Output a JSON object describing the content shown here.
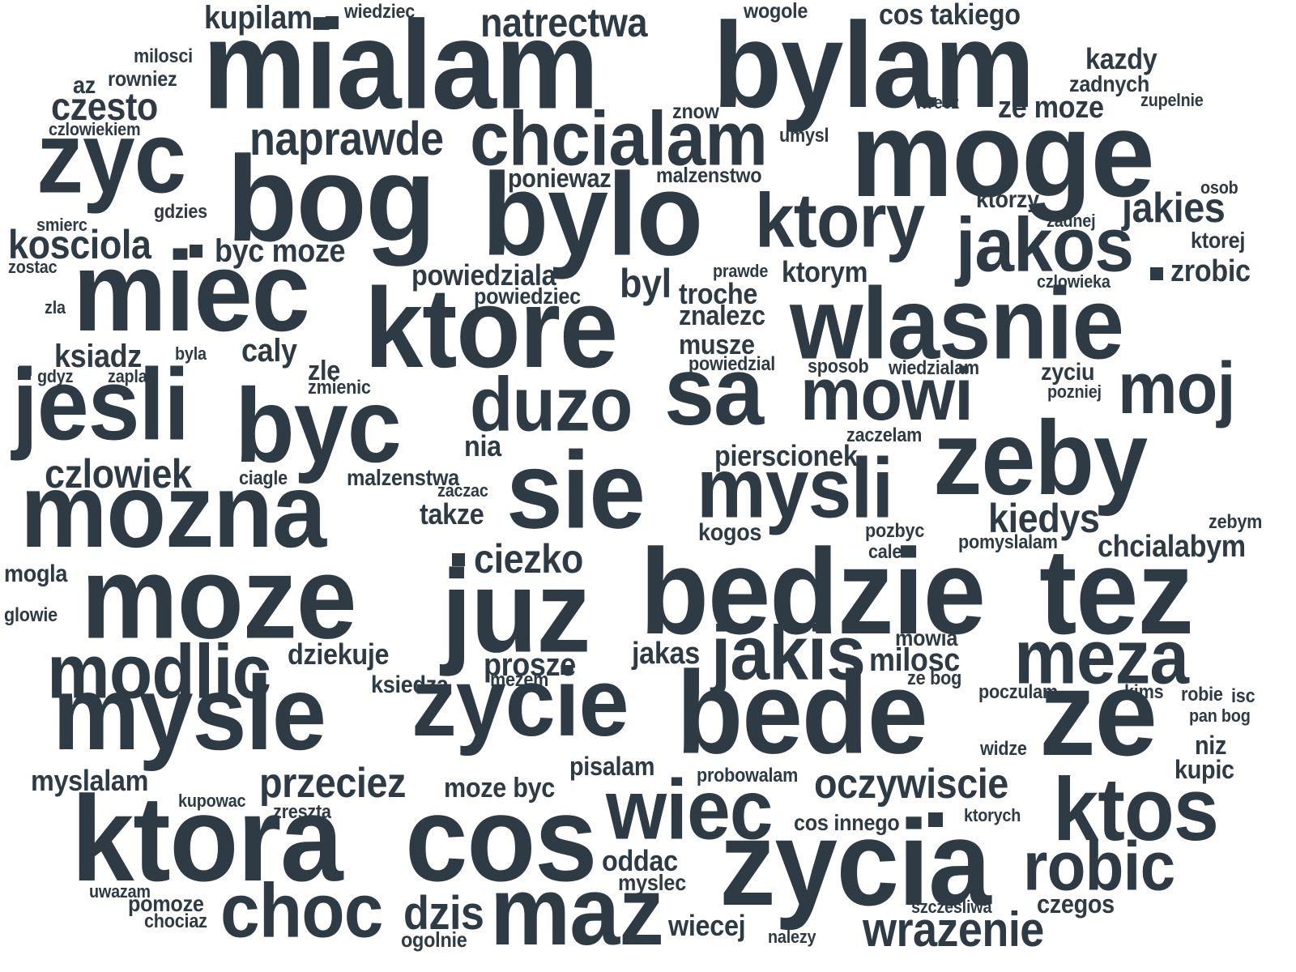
{
  "style": {
    "text_color": "#2e3a44",
    "background": "#ffffff"
  },
  "words": [
    "mialam",
    "bylam",
    "moge",
    "bog",
    "bylo",
    "zyc",
    "ktory",
    "chcialam",
    "naprawde",
    "jakos",
    "wlasnie",
    "miec",
    "ktore",
    "jesli",
    "byc",
    "sa",
    "mowi",
    "moj",
    "zeby",
    "duzo",
    "sie",
    "mysli",
    "mozna",
    "moze",
    "juz",
    "bedzie",
    "tez",
    "meza",
    "jakis",
    "modlic",
    "mysle",
    "zycie",
    "bede",
    "ze",
    "ktora",
    "cos",
    "wiec",
    "ktos",
    "zycia",
    "robic",
    "choc",
    "maz",
    "dzis",
    "wrazenie",
    "przeciez",
    "oczywiscie",
    "natrectwa",
    "kupilam",
    "cos takiego",
    "czesto",
    "kosciola",
    "kazdy",
    "jakies",
    "ciezko",
    "kiedys",
    "czlowiek",
    "chcialabym",
    "zrobic",
    "byl",
    "byc moze",
    "caly",
    "ksiadz",
    "wiedziec",
    "wogole",
    "milosci",
    "az",
    "rowniez",
    "czlowiekiem",
    "zadnych",
    "ze moze",
    "zupelnie",
    "wrecz",
    "znow",
    "umysl",
    "malzenstwo",
    "poniewaz",
    "osob",
    "ktorzy",
    "gdzies",
    "smierc",
    "zadnej",
    "ktorej",
    "zostac",
    "powiedziala",
    "prawde",
    "ktorym",
    "troche",
    "czlowieka",
    "zla",
    "powiedziec",
    "znalezc",
    "musze",
    "byla",
    "powiedzial",
    "sposob",
    "wiedzialam",
    "zyciu",
    "gdyz",
    "zaplac",
    "zle",
    "zmienic",
    "pozniej",
    "nia",
    "zaczelam",
    "pierscionek",
    "ciagle",
    "malzenstwa",
    "zaczac",
    "takze",
    "kogos",
    "pozbyc",
    "pomyslalam",
    "zebym",
    "mogla",
    "cale",
    "glowie",
    "mowia",
    "dziekuje",
    "jakas",
    "milosc",
    "prosze",
    "mezem",
    "ksiedza",
    "ze bog",
    "poczulam",
    "kims",
    "robie",
    "isc",
    "pan bog",
    "niz",
    "widze",
    "pisalam",
    "myslalam",
    "kupic",
    "probowalam",
    "moze byc",
    "kupowac",
    "zreszta",
    "cos innego",
    "ktorych",
    "oddac",
    "myslec",
    "uwazam",
    "pomoze",
    "chociaz",
    "szczesliwa",
    "czegos",
    "wiecej",
    "ogolnie",
    "nalezy"
  ]
}
